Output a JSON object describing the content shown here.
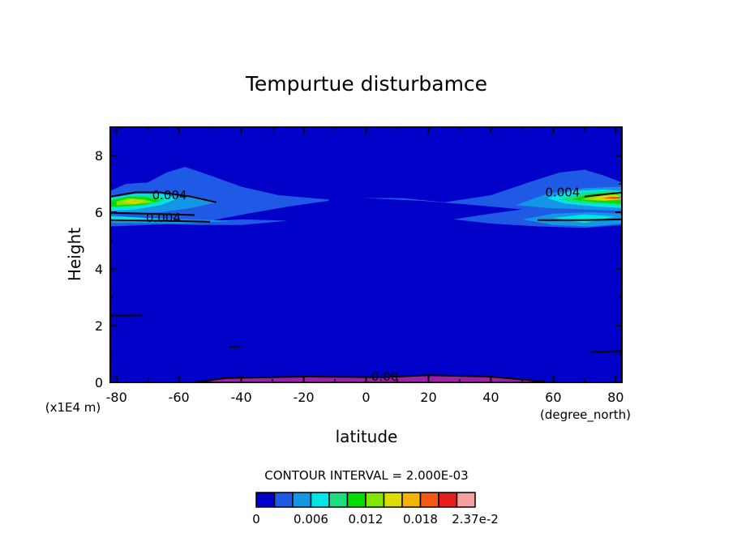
{
  "chart_data": {
    "type": "contour",
    "title": "Tempurtue disturbamce",
    "xlabel": "latitude",
    "ylabel": "Height",
    "x_unit": "(degree_north)",
    "y_unit": "(x1E4 m)",
    "xlim": [
      -82,
      82
    ],
    "ylim": [
      0,
      9
    ],
    "xticks": [
      -80,
      -60,
      -40,
      -20,
      0,
      20,
      40,
      60,
      80
    ],
    "yticks": [
      0,
      2,
      4,
      6,
      8
    ],
    "contour_interval_text": "CONTOUR INTERVAL = 2.000E-03",
    "contour_labels": [
      {
        "text": "0.004",
        "x": -63,
        "y": 6.6
      },
      {
        "text": "0.004",
        "x": -65,
        "y": 5.8
      },
      {
        "text": "0.004",
        "x": 63,
        "y": 6.7
      },
      {
        "text": "0.00",
        "x": 6,
        "y": 0.2
      }
    ],
    "colorbar": {
      "levels": [
        0,
        0.002,
        0.004,
        0.006,
        0.008,
        0.01,
        0.012,
        0.014,
        0.016,
        0.018,
        0.02,
        0.022,
        0.0237
      ],
      "colors": [
        "#0000c8",
        "#1e5ae6",
        "#1496e6",
        "#00e6e6",
        "#1edc82",
        "#00dc00",
        "#82e600",
        "#dcdc00",
        "#f5b400",
        "#f55a14",
        "#e61e1e",
        "#f5a0a0"
      ],
      "tick_labels": [
        "0",
        "0.006",
        "0.012",
        "0.018",
        "2.37e-2"
      ],
      "tick_level_index": [
        0,
        3,
        6,
        9,
        12
      ]
    },
    "background_color": "#0000c8",
    "negative_color": "#a01eaa",
    "regions": [
      {
        "level": 1,
        "pts": [
          [
            -82,
            6.75
          ],
          [
            -77,
            7.0
          ],
          [
            -70,
            7.05
          ],
          [
            -64,
            7.4
          ],
          [
            -58,
            7.6
          ],
          [
            -50,
            7.3
          ],
          [
            -40,
            6.9
          ],
          [
            -28,
            6.6
          ],
          [
            -12,
            6.45
          ],
          [
            -12,
            6.4
          ],
          [
            -25,
            6.2
          ],
          [
            -38,
            5.95
          ],
          [
            -50,
            5.7
          ],
          [
            -58,
            5.6
          ],
          [
            -70,
            5.55
          ],
          [
            -82,
            5.5
          ]
        ]
      },
      {
        "level": 1,
        "pts": [
          [
            -82,
            5.85
          ],
          [
            -70,
            5.75
          ],
          [
            -55,
            5.65
          ],
          [
            -40,
            5.75
          ],
          [
            -25,
            5.7
          ],
          [
            -40,
            5.55
          ],
          [
            -55,
            5.55
          ],
          [
            -82,
            5.65
          ]
        ]
      },
      {
        "level": 1,
        "pts": [
          [
            -1,
            6.5
          ],
          [
            12,
            6.5
          ],
          [
            25,
            6.35
          ],
          [
            40,
            6.6
          ],
          [
            52,
            7.05
          ],
          [
            62,
            7.4
          ],
          [
            70,
            7.5
          ],
          [
            76,
            7.3
          ],
          [
            82,
            7.05
          ],
          [
            82,
            5.55
          ],
          [
            70,
            5.45
          ],
          [
            55,
            5.5
          ],
          [
            40,
            5.6
          ],
          [
            28,
            5.75
          ],
          [
            40,
            5.95
          ],
          [
            50,
            6.1
          ],
          [
            35,
            6.25
          ],
          [
            18,
            6.4
          ]
        ]
      },
      {
        "level": 2,
        "pts": [
          [
            -82,
            6.55
          ],
          [
            -74,
            6.7
          ],
          [
            -66,
            6.7
          ],
          [
            -56,
            6.55
          ],
          [
            -48,
            6.35
          ],
          [
            -56,
            6.15
          ],
          [
            -66,
            6.0
          ],
          [
            -74,
            5.95
          ],
          [
            -82,
            5.95
          ]
        ]
      },
      {
        "level": 2,
        "pts": [
          [
            -82,
            5.9
          ],
          [
            -72,
            5.8
          ],
          [
            -58,
            5.75
          ],
          [
            -42,
            5.7
          ],
          [
            -58,
            5.6
          ],
          [
            -82,
            5.62
          ]
        ]
      },
      {
        "level": 2,
        "pts": [
          [
            48,
            6.25
          ],
          [
            58,
            6.65
          ],
          [
            70,
            6.85
          ],
          [
            82,
            6.9
          ],
          [
            82,
            6.05
          ],
          [
            70,
            6.1
          ],
          [
            58,
            6.15
          ]
        ]
      },
      {
        "level": 2,
        "pts": [
          [
            50,
            5.75
          ],
          [
            60,
            5.95
          ],
          [
            72,
            6.0
          ],
          [
            82,
            5.95
          ],
          [
            82,
            5.6
          ],
          [
            72,
            5.5
          ],
          [
            60,
            5.55
          ]
        ]
      },
      {
        "level": 3,
        "pts": [
          [
            -82,
            6.5
          ],
          [
            -74,
            6.65
          ],
          [
            -66,
            6.65
          ],
          [
            -60,
            6.5
          ],
          [
            -66,
            6.25
          ],
          [
            -74,
            6.1
          ],
          [
            -82,
            6.05
          ]
        ]
      },
      {
        "level": 3,
        "pts": [
          [
            -82,
            5.85
          ],
          [
            -74,
            5.82
          ],
          [
            -64,
            5.75
          ],
          [
            -74,
            5.68
          ],
          [
            -82,
            5.7
          ]
        ]
      },
      {
        "level": 3,
        "pts": [
          [
            58,
            6.5
          ],
          [
            66,
            6.75
          ],
          [
            76,
            6.8
          ],
          [
            82,
            6.75
          ],
          [
            82,
            6.15
          ],
          [
            74,
            6.2
          ],
          [
            64,
            6.3
          ]
        ]
      },
      {
        "level": 3,
        "pts": [
          [
            60,
            5.8
          ],
          [
            70,
            5.92
          ],
          [
            80,
            5.85
          ],
          [
            70,
            5.62
          ]
        ]
      },
      {
        "level": 4,
        "pts": [
          [
            -82,
            6.45
          ],
          [
            -75,
            6.6
          ],
          [
            -68,
            6.6
          ],
          [
            -64,
            6.45
          ],
          [
            -68,
            6.3
          ],
          [
            -75,
            6.2
          ],
          [
            -82,
            6.15
          ]
        ]
      },
      {
        "level": 4,
        "pts": [
          [
            62,
            6.45
          ],
          [
            70,
            6.7
          ],
          [
            79,
            6.75
          ],
          [
            82,
            6.6
          ],
          [
            82,
            6.25
          ],
          [
            74,
            6.3
          ],
          [
            66,
            6.35
          ]
        ]
      },
      {
        "level": 5,
        "pts": [
          [
            -82,
            6.4
          ],
          [
            -76,
            6.55
          ],
          [
            -70,
            6.52
          ],
          [
            -66,
            6.4
          ],
          [
            -72,
            6.25
          ],
          [
            -82,
            6.2
          ]
        ]
      },
      {
        "level": 5,
        "pts": [
          [
            66,
            6.45
          ],
          [
            72,
            6.65
          ],
          [
            80,
            6.7
          ],
          [
            82,
            6.5
          ],
          [
            82,
            6.3
          ],
          [
            74,
            6.35
          ]
        ]
      },
      {
        "level": 6,
        "pts": [
          [
            -80,
            6.38
          ],
          [
            -76,
            6.5
          ],
          [
            -71,
            6.45
          ],
          [
            -68,
            6.35
          ],
          [
            -74,
            6.28
          ],
          [
            -80,
            6.25
          ]
        ]
      },
      {
        "level": 6,
        "pts": [
          [
            69,
            6.45
          ],
          [
            74,
            6.62
          ],
          [
            80,
            6.65
          ],
          [
            82,
            6.45
          ],
          [
            76,
            6.4
          ]
        ]
      },
      {
        "level": 7,
        "pts": [
          [
            -78,
            6.36
          ],
          [
            -75,
            6.45
          ],
          [
            -71,
            6.4
          ],
          [
            -74,
            6.3
          ]
        ]
      },
      {
        "level": 7,
        "pts": [
          [
            72,
            6.45
          ],
          [
            76,
            6.58
          ],
          [
            81,
            6.6
          ],
          [
            82,
            6.45
          ],
          [
            77,
            6.42
          ]
        ]
      },
      {
        "level": 8,
        "pts": [
          [
            -76,
            6.36
          ],
          [
            -74,
            6.42
          ],
          [
            -72,
            6.36
          ]
        ]
      },
      {
        "level": 8,
        "pts": [
          [
            74,
            6.47
          ],
          [
            78,
            6.56
          ],
          [
            82,
            6.52
          ],
          [
            79,
            6.45
          ]
        ]
      },
      {
        "level": 9,
        "pts": [
          [
            76,
            6.5
          ],
          [
            79,
            6.55
          ],
          [
            82,
            6.5
          ],
          [
            80,
            6.47
          ]
        ]
      },
      {
        "level": 10,
        "pts": [
          [
            78,
            6.5
          ],
          [
            81,
            6.53
          ],
          [
            82,
            6.49
          ]
        ]
      }
    ],
    "negative_regions": [
      {
        "pts": [
          [
            -55,
            0
          ],
          [
            -45,
            0.15
          ],
          [
            -20,
            0.2
          ],
          [
            5,
            0.18
          ],
          [
            20,
            0.25
          ],
          [
            40,
            0.2
          ],
          [
            55,
            0.05
          ],
          [
            58,
            0
          ]
        ]
      }
    ],
    "contour_lines": [
      [
        [
          -82,
          6.55
        ],
        [
          -74,
          6.7
        ],
        [
          -66,
          6.7
        ],
        [
          -56,
          6.55
        ],
        [
          -48,
          6.35
        ]
      ],
      [
        [
          -82,
          5.98
        ],
        [
          -70,
          5.95
        ],
        [
          -55,
          5.9
        ]
      ],
      [
        [
          -82,
          5.72
        ],
        [
          -65,
          5.7
        ],
        [
          -50,
          5.66
        ]
      ],
      [
        [
          -82,
          2.35
        ],
        [
          -72,
          2.36
        ]
      ],
      [
        [
          -44,
          1.25
        ],
        [
          -40,
          1.27
        ]
      ],
      [
        [
          70,
          6.55
        ],
        [
          82,
          6.7
        ]
      ],
      [
        [
          55,
          5.72
        ],
        [
          70,
          5.72
        ],
        [
          82,
          5.75
        ]
      ],
      [
        [
          72,
          1.08
        ],
        [
          82,
          1.1
        ]
      ],
      [
        [
          -55,
          0
        ],
        [
          -45,
          0.15
        ],
        [
          -20,
          0.2
        ],
        [
          5,
          0.18
        ],
        [
          20,
          0.25
        ],
        [
          40,
          0.2
        ],
        [
          55,
          0.05
        ],
        [
          58,
          0
        ]
      ]
    ]
  }
}
